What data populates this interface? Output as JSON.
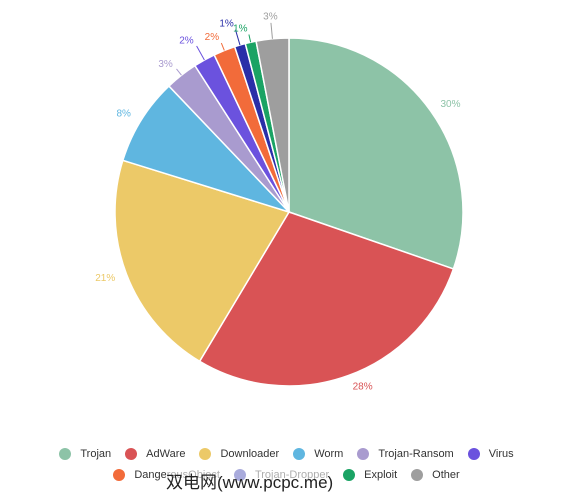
{
  "chart_data": {
    "type": "pie",
    "categories": [
      "Trojan",
      "AdWare",
      "Downloader",
      "Worm",
      "Trojan-Ransom",
      "Virus",
      "DangerousObject",
      "Trojan-Dropper",
      "Exploit",
      "Other"
    ],
    "values": [
      30,
      28,
      21,
      8,
      3,
      2,
      2,
      1,
      1,
      3
    ],
    "value_labels": [
      "30%",
      "28%",
      "21%",
      "8%",
      "3%",
      "2%",
      "2%",
      "1%",
      "1%",
      "3%"
    ],
    "colors": [
      "#8dc3a7",
      "#d95355",
      "#ecc968",
      "#5fb6e0",
      "#a99bcf",
      "#6b52de",
      "#f26b3a",
      "#2a2fa8",
      "#1aa364",
      "#9e9e9e"
    ],
    "legend": "bottom"
  },
  "watermark": "双电网(www.pcpc.me)"
}
